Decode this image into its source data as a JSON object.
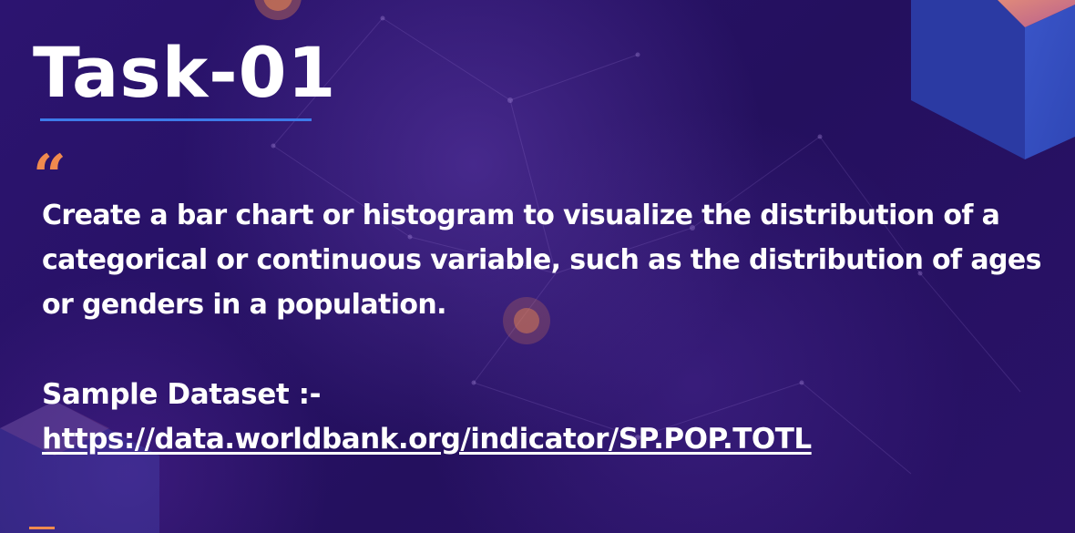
{
  "slide": {
    "title": "Task-01",
    "quote_mark": "“",
    "description": "Create a bar chart or histogram to visualize the distribution of a categorical or continuous variable, such as the distribution of ages or genders in a population.",
    "dataset_label": "Sample Dataset :-",
    "dataset_link": "https://data.worldbank.org/indicator/SP.POP.TOTL"
  },
  "colors": {
    "background": "#2a1268",
    "title_underline": "#3d7bea",
    "quote_accent": "#f08a4e",
    "text": "#ffffff"
  }
}
